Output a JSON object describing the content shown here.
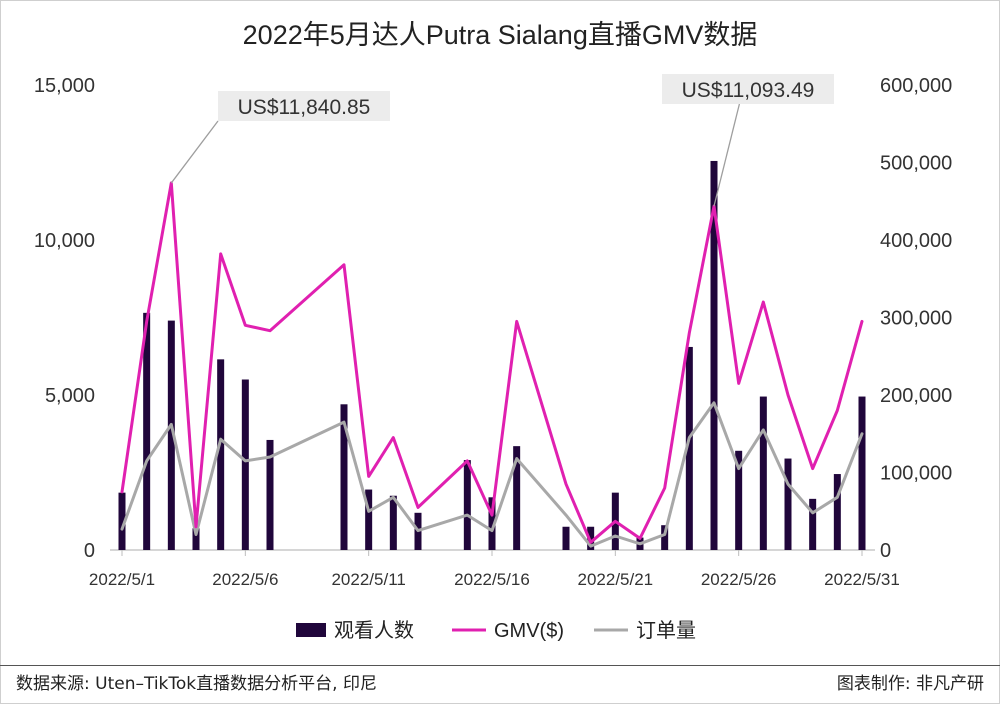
{
  "chart_data": {
    "type": "bar",
    "title": "2022年5月达人Putra Sialang直播GMV数据",
    "x": [
      "2022/5/1",
      "2022/5/2",
      "2022/5/3",
      "2022/5/4",
      "2022/5/5",
      "2022/5/6",
      "2022/5/7",
      "2022/5/8",
      "2022/5/9",
      "2022/5/10",
      "2022/5/11",
      "2022/5/12",
      "2022/5/13",
      "2022/5/14",
      "2022/5/15",
      "2022/5/16",
      "2022/5/17",
      "2022/5/18",
      "2022/5/19",
      "2022/5/20",
      "2022/5/21",
      "2022/5/22",
      "2022/5/23",
      "2022/5/24",
      "2022/5/25",
      "2022/5/26",
      "2022/5/27",
      "2022/5/28",
      "2022/5/29",
      "2022/5/30",
      "2022/5/31"
    ],
    "x_tick_labels": [
      "2022/5/1",
      "2022/5/6",
      "2022/5/11",
      "2022/5/16",
      "2022/5/21",
      "2022/5/26",
      "2022/5/31"
    ],
    "left_axis": {
      "ylim": [
        0,
        15000
      ],
      "ticks": [
        "0",
        "5,000",
        "10,000",
        "15,000"
      ]
    },
    "right_axis": {
      "ylim": [
        0,
        600000
      ],
      "ticks": [
        "0",
        "100,000",
        "200,000",
        "300,000",
        "400,000",
        "500,000",
        "600,000"
      ]
    },
    "series": [
      {
        "name": "观看人数",
        "type": "bar",
        "axis": "left",
        "color": "#20063b",
        "values": [
          1850,
          7650,
          7400,
          700,
          6150,
          5500,
          3550,
          null,
          null,
          4700,
          1950,
          1750,
          1200,
          null,
          2900,
          1700,
          3350,
          null,
          750,
          750,
          1850,
          400,
          800,
          6550,
          12550,
          3200,
          4950,
          2950,
          1650,
          2450,
          4950
        ]
      },
      {
        "name": "GMV($)",
        "type": "line",
        "axis": "right",
        "color": "#e020b0",
        "values": [
          75000,
          295000,
          473635,
          30000,
          382000,
          290000,
          283000,
          null,
          null,
          368000,
          95000,
          145000,
          55000,
          null,
          115000,
          45000,
          295000,
          null,
          85000,
          10000,
          37000,
          15000,
          80000,
          280000,
          443740,
          215000,
          320000,
          200000,
          105000,
          180000,
          295000
        ]
      },
      {
        "name": "订单量",
        "type": "line",
        "axis": "right",
        "color": "#a8a8a8",
        "values": [
          27000,
          115000,
          162000,
          20000,
          143000,
          115000,
          120000,
          null,
          null,
          165000,
          50000,
          68000,
          25000,
          null,
          45000,
          25000,
          118000,
          null,
          45000,
          5000,
          18000,
          8000,
          20000,
          145000,
          190000,
          105000,
          155000,
          85000,
          48000,
          68000,
          150000
        ]
      }
    ],
    "annotations": [
      {
        "label": "US$11,840.85",
        "x": "2022/5/3",
        "series": "GMV($)"
      },
      {
        "label": "US$11,093.49",
        "x": "2022/5/25",
        "series": "GMV($)"
      }
    ],
    "legend": "bottom"
  },
  "footer": {
    "source": "数据来源: Uten–TikTok直播数据分析平台, 印尼",
    "credit": "图表制作: 非凡产研"
  }
}
